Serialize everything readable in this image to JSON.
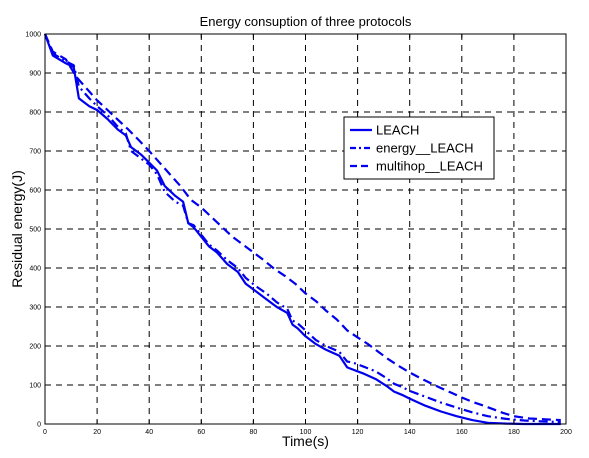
{
  "chart_data": {
    "type": "line",
    "title": "Energy consuption of three protocols",
    "xlabel": "Time(s)",
    "ylabel": "Residual energy(J)",
    "xlim": [
      0,
      200
    ],
    "ylim": [
      0,
      1000
    ],
    "xticks": [
      0,
      20,
      40,
      60,
      80,
      100,
      120,
      140,
      160,
      180,
      200
    ],
    "yticks": [
      0,
      100,
      200,
      300,
      400,
      500,
      600,
      700,
      800,
      900,
      1000
    ],
    "grid": true,
    "legend_position": "upper-right",
    "series": [
      {
        "name": "LEACH",
        "style": "solid",
        "color": "#0000ee",
        "x": [
          0,
          3,
          8,
          11,
          13,
          17,
          20,
          24,
          28,
          31,
          33,
          37,
          40,
          43,
          46,
          50,
          53,
          55,
          57,
          60,
          63,
          66,
          70,
          74,
          77,
          81,
          85,
          89,
          93,
          95,
          97,
          100,
          104,
          108,
          113,
          116,
          118,
          122,
          127,
          131,
          134,
          137,
          140,
          146,
          152,
          158,
          164,
          170,
          177,
          184,
          190,
          198
        ],
        "y": [
          1000,
          945,
          925,
          915,
          835,
          815,
          805,
          782,
          755,
          740,
          710,
          690,
          670,
          650,
          610,
          585,
          570,
          515,
          505,
          480,
          455,
          440,
          410,
          390,
          360,
          340,
          320,
          300,
          285,
          255,
          245,
          225,
          205,
          190,
          175,
          145,
          140,
          130,
          115,
          98,
          83,
          75,
          65,
          47,
          32,
          20,
          10,
          3,
          1,
          0,
          0,
          0
        ]
      },
      {
        "name": "energy__LEACH",
        "style": "dashdot",
        "color": "#0000ee",
        "x": [
          0,
          3,
          8,
          11,
          13,
          17,
          20,
          24,
          28,
          31,
          33,
          37,
          40,
          43,
          46,
          50,
          53,
          55,
          57,
          60,
          63,
          66,
          70,
          74,
          77,
          81,
          85,
          89,
          93,
          95,
          97,
          100,
          104,
          108,
          113,
          116,
          118,
          122,
          127,
          131,
          134,
          137,
          140,
          146,
          152,
          158,
          164,
          170,
          177,
          184,
          190,
          198
        ],
        "y": [
          1000,
          950,
          930,
          920,
          865,
          835,
          815,
          792,
          762,
          745,
          700,
          680,
          665,
          640,
          595,
          570,
          560,
          515,
          510,
          485,
          460,
          445,
          420,
          400,
          375,
          353,
          335,
          312,
          295,
          265,
          258,
          240,
          215,
          200,
          185,
          160,
          158,
          148,
          135,
          118,
          103,
          95,
          85,
          70,
          55,
          42,
          30,
          20,
          13,
          9,
          7,
          5
        ]
      },
      {
        "name": "multihop__LEACH",
        "style": "dashed",
        "color": "#0000ee",
        "x": [
          0,
          3,
          8,
          12,
          16,
          20,
          24,
          28,
          32,
          36,
          40,
          44,
          48,
          52,
          56,
          60,
          64,
          68,
          72,
          76,
          80,
          84,
          88,
          92,
          96,
          100,
          104,
          108,
          112,
          116,
          120,
          124,
          128,
          132,
          136,
          140,
          144,
          148,
          152,
          156,
          160,
          164,
          168,
          172,
          176,
          180,
          186,
          192,
          198
        ],
        "y": [
          1000,
          955,
          935,
          890,
          860,
          830,
          805,
          780,
          755,
          728,
          700,
          670,
          640,
          610,
          575,
          555,
          530,
          505,
          480,
          460,
          440,
          420,
          398,
          380,
          360,
          335,
          315,
          290,
          268,
          240,
          222,
          205,
          185,
          165,
          148,
          132,
          118,
          105,
          92,
          80,
          68,
          57,
          48,
          38,
          28,
          20,
          14,
          12,
          10
        ]
      }
    ]
  }
}
